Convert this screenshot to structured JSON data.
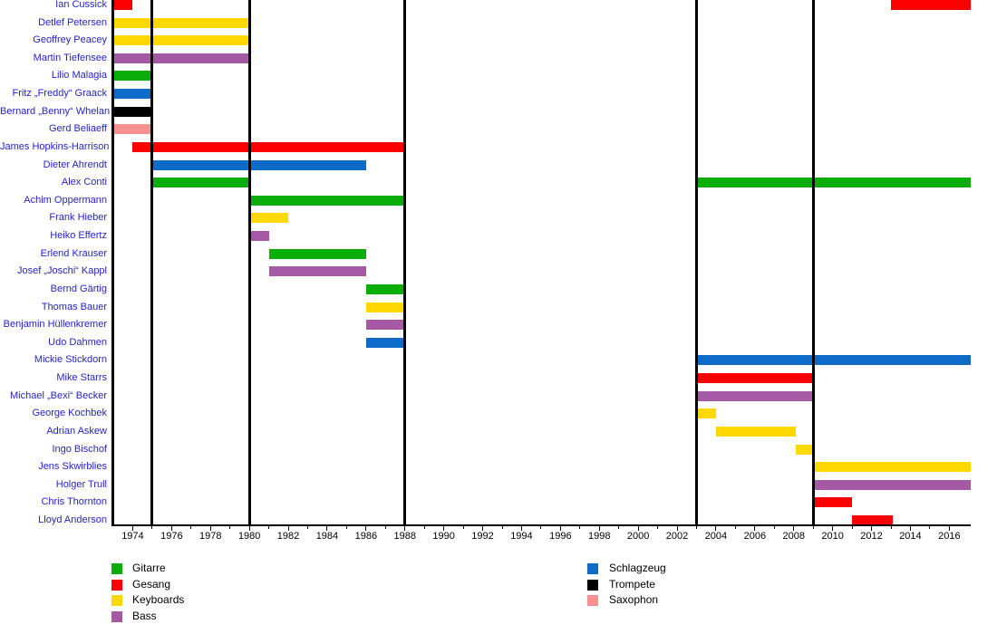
{
  "chart_data": {
    "type": "timeline",
    "title": "",
    "description": "Band member timeline (Gantt-style) with instruments color-coded",
    "axis": {
      "start_year": 1973,
      "end_year": 2017.1,
      "label_years": [
        1974,
        1976,
        1978,
        1980,
        1982,
        1984,
        1986,
        1988,
        1990,
        1992,
        1994,
        1996,
        1998,
        2000,
        2002,
        2004,
        2006,
        2008,
        2010,
        2012,
        2014,
        2016
      ],
      "minor_tick_every_year": true,
      "grid": false
    },
    "phase_lines": [
      1975,
      1980,
      1988,
      2003,
      2009
    ],
    "palette": {
      "Gitarre": "#0AAD0A",
      "Gesang": "#FA0000",
      "Keyboards": "#FFD800",
      "Bass": "#A559A5",
      "Schlagzeug": "#0E6BC8",
      "Trompete": "#000000",
      "Saxophon": "#FA9191"
    },
    "label_link_color": "#2622CD",
    "members": [
      {
        "name": "Ian Cussick",
        "instrument": "Gesang",
        "periods": [
          [
            1973,
            1974
          ],
          [
            2013,
            2017.1
          ]
        ]
      },
      {
        "name": "Detlef Petersen",
        "instrument": "Keyboards",
        "periods": [
          [
            1973,
            1980
          ]
        ]
      },
      {
        "name": "Geoffrey Peacey",
        "instrument": "Keyboards",
        "periods": [
          [
            1973,
            1980
          ]
        ]
      },
      {
        "name": "Martin Tiefensee",
        "instrument": "Bass",
        "periods": [
          [
            1973,
            1980
          ]
        ]
      },
      {
        "name": "Lilio Malagia",
        "instrument": "Gitarre",
        "periods": [
          [
            1973,
            1975
          ]
        ]
      },
      {
        "name": "Fritz „Freddy“ Graack",
        "instrument": "Schlagzeug",
        "periods": [
          [
            1973,
            1975
          ]
        ]
      },
      {
        "name": "Bernard „Benny“ Whelan",
        "instrument": "Trompete",
        "periods": [
          [
            1973,
            1975
          ]
        ]
      },
      {
        "name": "Gerd Beliaeff",
        "instrument": "Saxophon",
        "periods": [
          [
            1973,
            1975
          ]
        ]
      },
      {
        "name": "James Hopkins-Harrison",
        "instrument": "Gesang",
        "periods": [
          [
            1974,
            1988
          ]
        ]
      },
      {
        "name": "Dieter Ahrendt",
        "instrument": "Schlagzeug",
        "periods": [
          [
            1975,
            1986
          ]
        ]
      },
      {
        "name": "Alex Conti",
        "instrument": "Gitarre",
        "periods": [
          [
            1975,
            1980
          ],
          [
            2003,
            2017.1
          ]
        ]
      },
      {
        "name": "Achim Oppermann",
        "instrument": "Gitarre",
        "periods": [
          [
            1980,
            1988
          ]
        ]
      },
      {
        "name": "Frank Hieber",
        "instrument": "Keyboards",
        "periods": [
          [
            1980,
            1982
          ]
        ]
      },
      {
        "name": "Heiko Effertz",
        "instrument": "Bass",
        "periods": [
          [
            1980,
            1981
          ]
        ]
      },
      {
        "name": "Erlend Krauser",
        "instrument": "Gitarre",
        "periods": [
          [
            1981,
            1986
          ]
        ]
      },
      {
        "name": "Josef „Joschi“ Kappl",
        "instrument": "Bass",
        "periods": [
          [
            1981,
            1986
          ]
        ]
      },
      {
        "name": "Bernd Gärtig",
        "instrument": "Gitarre",
        "periods": [
          [
            1986,
            1988
          ]
        ]
      },
      {
        "name": "Thomas Bauer",
        "instrument": "Keyboards",
        "periods": [
          [
            1986,
            1988
          ]
        ]
      },
      {
        "name": "Benjamin Hüllenkremer",
        "instrument": "Bass",
        "periods": [
          [
            1986,
            1988
          ]
        ]
      },
      {
        "name": "Udo Dahmen",
        "instrument": "Schlagzeug",
        "periods": [
          [
            1986,
            1988
          ]
        ]
      },
      {
        "name": "Mickie Stickdorn",
        "instrument": "Schlagzeug",
        "periods": [
          [
            2003,
            2017.1
          ]
        ]
      },
      {
        "name": "Mike Starrs",
        "instrument": "Gesang",
        "periods": [
          [
            2003,
            2009
          ]
        ]
      },
      {
        "name": "Michael „Bexi“ Becker",
        "instrument": "Bass",
        "periods": [
          [
            2003,
            2009
          ]
        ]
      },
      {
        "name": "George Kochbek",
        "instrument": "Keyboards",
        "periods": [
          [
            2003,
            2004
          ]
        ]
      },
      {
        "name": "Adrian Askew",
        "instrument": "Keyboards",
        "periods": [
          [
            2004,
            2008.1
          ]
        ]
      },
      {
        "name": "Ingo Bischof",
        "instrument": "Keyboards",
        "periods": [
          [
            2008.1,
            2009
          ]
        ]
      },
      {
        "name": "Jens Skwirblies",
        "instrument": "Keyboards",
        "periods": [
          [
            2009,
            2017.1
          ]
        ]
      },
      {
        "name": "Holger Trull",
        "instrument": "Bass",
        "periods": [
          [
            2009,
            2017.1
          ]
        ]
      },
      {
        "name": "Chris Thornton",
        "instrument": "Gesang",
        "periods": [
          [
            2009,
            2011
          ]
        ]
      },
      {
        "name": "Lloyd Anderson",
        "instrument": "Gesang",
        "periods": [
          [
            2011,
            2013.1
          ]
        ]
      }
    ],
    "legend": {
      "left_column": [
        "Gitarre",
        "Gesang",
        "Keyboards",
        "Bass"
      ],
      "right_column": [
        "Schlagzeug",
        "Trompete",
        "Saxophon"
      ]
    }
  }
}
